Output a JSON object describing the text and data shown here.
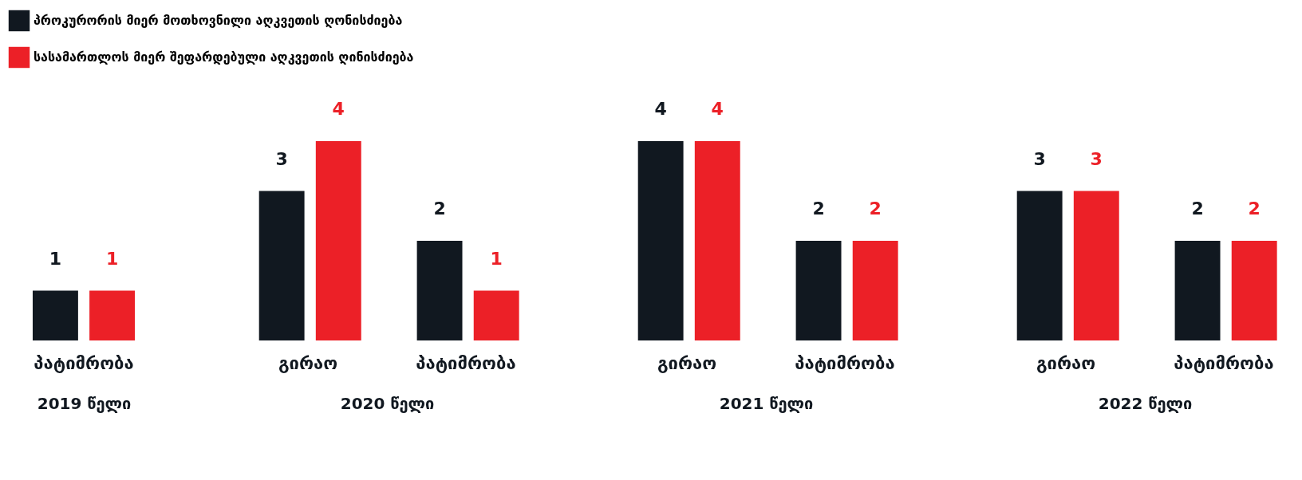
{
  "chart_data": [
    {
      "type": "bar",
      "xlabel": "2019 წელი",
      "categories": [
        "პატიმრობა"
      ],
      "data_labels": true,
      "legend": "top",
      "series": [
        {
          "name": "პროკურორის მიერ მოთხოვნილი აღკვეთის ღონისძიება",
          "color": "#111820",
          "values": [
            1
          ]
        },
        {
          "name": "სასამართლოს მიერ შეფარდებული აღკვეთის ღინისძიება",
          "color": "#ec2027",
          "values": [
            1
          ]
        }
      ]
    },
    {
      "type": "bar",
      "xlabel": "2020 წელი",
      "categories": [
        "გირაო",
        "პატიმრობა"
      ],
      "data_labels": true,
      "series": [
        {
          "color": "#111820",
          "values": [
            3,
            2
          ]
        },
        {
          "color": "#ec2027",
          "values": [
            4,
            1
          ]
        }
      ]
    },
    {
      "type": "bar",
      "xlabel": "2021 წელი",
      "categories": [
        "გირაო",
        "პატიმრობა"
      ],
      "data_labels": true,
      "series": [
        {
          "color": "#111820",
          "values": [
            4,
            2
          ]
        },
        {
          "color": "#ec2027",
          "values": [
            4,
            2
          ]
        }
      ]
    },
    {
      "type": "bar",
      "xlabel": "2022 წელი",
      "categories": [
        "გირაო",
        "პატიმრობა"
      ],
      "data_labels": true,
      "series": [
        {
          "color": "#111820",
          "values": [
            3,
            2
          ]
        },
        {
          "color": "#ec2027",
          "values": [
            3,
            2
          ]
        }
      ]
    }
  ]
}
